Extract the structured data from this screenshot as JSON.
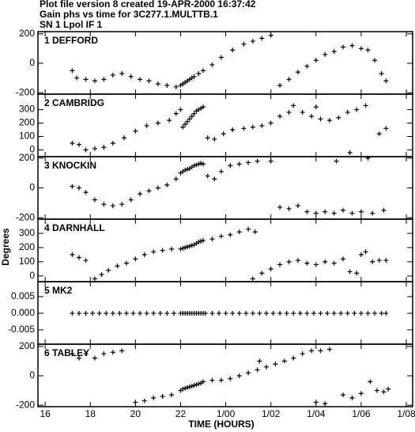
{
  "header": {
    "lines": [
      "Plot file version 8  created 19-APR-2000 16:37:42",
      "Gain phs vs time for 3C277.1.MULTTB.1",
      "SN 1 Lpol IF 1"
    ]
  },
  "x_axis": {
    "label": "TIME (HOURS)",
    "xlim": [
      15.68,
      32.28
    ],
    "xticks": [
      16,
      18,
      20,
      22,
      {
        "value": 24,
        "label": "1/00"
      },
      {
        "value": 26,
        "label": "1/02"
      },
      {
        "value": 28,
        "label": "1/04"
      },
      {
        "value": 30,
        "label": "1/06"
      },
      {
        "value": 32,
        "label": "1/08"
      }
    ]
  },
  "ylabel": "Degrees",
  "chart_data": [
    {
      "type": "scatter",
      "label": "1 DEFFORD",
      "color": "#000000",
      "ylim": [
        -210,
        215
      ],
      "yticks": [
        -200,
        0,
        200
      ],
      "x": [
        17.2,
        17.4,
        17.8,
        18.2,
        18.6,
        19.0,
        19.4,
        19.8,
        20.2,
        20.6,
        21.0,
        21.4,
        21.8,
        22.0,
        22.1,
        22.2,
        22.3,
        22.4,
        22.5,
        22.6,
        22.8,
        23.0,
        23.4,
        23.8,
        24.3,
        24.8,
        25.2,
        25.6,
        26.0,
        26.4,
        26.8,
        27.2,
        27.6,
        28.0,
        28.4,
        28.8,
        29.2,
        29.6,
        30.0,
        30.3,
        30.6,
        30.9,
        31.1
      ],
      "values": [
        -50,
        -100,
        -110,
        -120,
        -110,
        -80,
        -70,
        -90,
        -110,
        -120,
        -140,
        -150,
        -160,
        -150,
        -140,
        -130,
        -120,
        -110,
        -100,
        -90,
        -70,
        -50,
        -10,
        40,
        90,
        130,
        150,
        170,
        190,
        -150,
        -110,
        -60,
        -20,
        20,
        60,
        80,
        110,
        120,
        100,
        90,
        20,
        -70,
        -120
      ]
    },
    {
      "type": "scatter",
      "label": "2 CAMBRIDG",
      "color": "#000000",
      "ylim": [
        -50,
        415
      ],
      "yticks": [
        0,
        100,
        200,
        300
      ],
      "x": [
        17.2,
        17.5,
        17.8,
        18.2,
        18.6,
        19.0,
        19.5,
        20.0,
        20.5,
        21.0,
        21.5,
        21.8,
        22.0,
        22.1,
        22.2,
        22.3,
        22.4,
        22.5,
        22.6,
        22.7,
        22.8,
        22.9,
        23.0,
        23.2,
        23.5,
        23.9,
        24.3,
        24.8,
        25.2,
        25.6,
        26.0,
        26.4,
        26.8,
        27.0,
        27.4,
        27.8,
        28.0,
        28.2,
        28.6,
        29.0,
        29.4,
        29.5,
        29.8,
        30.2,
        30.8,
        31.1
      ],
      "values": [
        50,
        40,
        0,
        10,
        20,
        50,
        90,
        140,
        180,
        200,
        220,
        270,
        300,
        170,
        190,
        210,
        230,
        250,
        270,
        290,
        300,
        310,
        320,
        90,
        80,
        120,
        150,
        160,
        170,
        180,
        200,
        250,
        280,
        330,
        280,
        250,
        320,
        230,
        220,
        240,
        280,
        -20,
        300,
        330,
        120,
        160
      ]
    },
    {
      "type": "scatter",
      "label": "3 KNOCKIN",
      "color": "#000000",
      "ylim": [
        -210,
        210
      ],
      "yticks": [
        -200,
        0,
        200
      ],
      "x": [
        17.2,
        17.5,
        17.8,
        18.2,
        18.6,
        19.0,
        19.4,
        19.8,
        20.2,
        20.6,
        21.0,
        21.4,
        21.8,
        22.0,
        22.1,
        22.2,
        22.3,
        22.4,
        22.5,
        22.6,
        22.7,
        22.8,
        22.9,
        23.0,
        23.2,
        23.5,
        23.8,
        24.2,
        24.6,
        25.0,
        25.4,
        26.0,
        26.4,
        26.8,
        27.2,
        27.6,
        28.0,
        28.4,
        28.8,
        28.9,
        29.2,
        29.6,
        30.0,
        30.3,
        30.5,
        31.0
      ],
      "values": [
        10,
        0,
        -30,
        -80,
        -110,
        -120,
        -110,
        -80,
        -40,
        -20,
        0,
        20,
        60,
        100,
        110,
        120,
        125,
        130,
        140,
        150,
        155,
        160,
        165,
        160,
        80,
        60,
        110,
        150,
        160,
        170,
        180,
        180,
        -130,
        -140,
        -120,
        -160,
        -170,
        -160,
        -170,
        180,
        -150,
        -170,
        -160,
        200,
        -170,
        -150
      ]
    },
    {
      "type": "scatter",
      "label": "4 DARNHALL",
      "color": "#000000",
      "ylim": [
        -40,
        400
      ],
      "yticks": [
        0,
        100,
        200,
        300
      ],
      "x": [
        17.2,
        17.5,
        17.8,
        18.2,
        18.5,
        18.8,
        19.2,
        19.6,
        20.0,
        20.4,
        20.8,
        21.2,
        21.6,
        22.0,
        22.1,
        22.2,
        22.3,
        22.4,
        22.5,
        22.6,
        22.7,
        22.8,
        22.9,
        23.0,
        23.4,
        23.8,
        24.2,
        24.6,
        25.0,
        25.2,
        25.3,
        25.6,
        26.0,
        26.4,
        26.8,
        27.2,
        27.6,
        28.0,
        28.4,
        28.8,
        29.2,
        29.5,
        29.8,
        30.0,
        30.2,
        30.5,
        30.8,
        31.1
      ],
      "values": [
        150,
        130,
        110,
        -20,
        10,
        40,
        70,
        90,
        120,
        150,
        170,
        180,
        190,
        190,
        195,
        200,
        205,
        210,
        215,
        220,
        230,
        240,
        245,
        250,
        260,
        280,
        290,
        310,
        330,
        -20,
        310,
        20,
        50,
        80,
        100,
        110,
        90,
        80,
        100,
        90,
        120,
        30,
        20,
        150,
        170,
        100,
        110,
        110
      ]
    },
    {
      "type": "scatter",
      "label": "5 MK2",
      "color": "#000000",
      "ylim": [
        -0.0093,
        0.0095
      ],
      "yticks": [
        -0.005,
        {
          "value": 0,
          "label": "0.000"
        },
        0.005
      ],
      "x": [
        17.2,
        17.5,
        17.8,
        18.1,
        18.4,
        18.7,
        19.0,
        19.3,
        19.6,
        19.9,
        20.2,
        20.5,
        20.8,
        21.1,
        21.4,
        21.7,
        22.0,
        22.1,
        22.2,
        22.3,
        22.4,
        22.5,
        22.6,
        22.7,
        22.8,
        22.9,
        23.0,
        23.1,
        23.4,
        23.7,
        24.0,
        24.3,
        24.6,
        24.9,
        25.2,
        25.5,
        25.8,
        26.1,
        26.4,
        26.7,
        27.0,
        27.3,
        27.6,
        27.9,
        28.2,
        28.5,
        28.8,
        29.1,
        29.4,
        29.7,
        30.0,
        30.3,
        30.6,
        30.9,
        31.1
      ],
      "values": [
        0,
        0,
        0,
        0,
        0,
        0,
        0,
        0,
        0,
        0,
        0,
        0,
        0,
        0,
        0,
        0,
        0,
        0,
        0,
        0,
        0,
        0,
        0,
        0,
        0,
        0,
        0,
        0,
        0,
        0,
        0,
        0,
        0,
        0,
        0,
        0,
        0,
        0,
        0,
        0,
        0,
        0,
        0,
        0,
        0,
        0,
        0,
        0,
        0,
        0,
        0,
        0,
        0,
        0,
        0
      ]
    },
    {
      "type": "scatter",
      "label": "6 TABLEY",
      "color": "#000000",
      "ylim": [
        -210,
        215
      ],
      "yticks": [
        -200,
        0,
        200
      ],
      "x": [
        17.2,
        17.5,
        17.8,
        18.2,
        18.6,
        19.0,
        19.4,
        20.0,
        20.4,
        20.8,
        21.2,
        21.6,
        22.0,
        22.1,
        22.2,
        22.3,
        22.4,
        22.5,
        22.6,
        22.7,
        22.8,
        22.9,
        23.0,
        23.4,
        23.8,
        24.2,
        24.6,
        25.0,
        25.4,
        25.5,
        25.8,
        26.2,
        26.6,
        27.0,
        27.4,
        27.8,
        28.0,
        28.2,
        28.4,
        28.6,
        29.2,
        29.6,
        30.0,
        30.4,
        30.7,
        31.0,
        31.2
      ],
      "values": [
        150,
        120,
        150,
        120,
        150,
        160,
        170,
        -180,
        -170,
        -150,
        -140,
        -130,
        -100,
        -90,
        -85,
        -80,
        -75,
        -70,
        -65,
        -60,
        -55,
        -50,
        -40,
        -30,
        -30,
        -20,
        0,
        20,
        40,
        100,
        60,
        80,
        100,
        120,
        150,
        170,
        -180,
        170,
        -190,
        180,
        -130,
        -150,
        -120,
        -40,
        -100,
        -110,
        -90
      ]
    }
  ]
}
